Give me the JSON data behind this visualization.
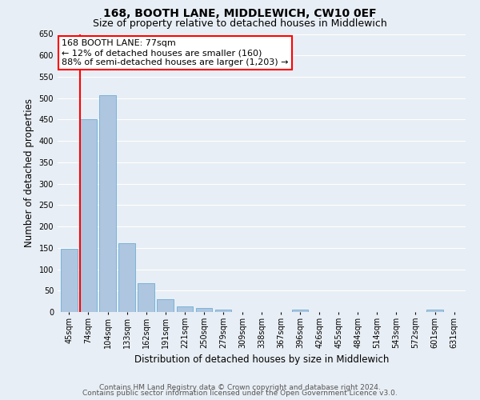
{
  "title": "168, BOOTH LANE, MIDDLEWICH, CW10 0EF",
  "subtitle": "Size of property relative to detached houses in Middlewich",
  "xlabel": "Distribution of detached houses by size in Middlewich",
  "ylabel": "Number of detached properties",
  "categories": [
    "45sqm",
    "74sqm",
    "104sqm",
    "133sqm",
    "162sqm",
    "191sqm",
    "221sqm",
    "250sqm",
    "279sqm",
    "309sqm",
    "338sqm",
    "367sqm",
    "396sqm",
    "426sqm",
    "455sqm",
    "484sqm",
    "514sqm",
    "543sqm",
    "572sqm",
    "601sqm",
    "631sqm"
  ],
  "values": [
    148,
    450,
    507,
    160,
    68,
    30,
    14,
    10,
    5,
    0,
    0,
    0,
    6,
    0,
    0,
    0,
    0,
    0,
    0,
    6,
    0
  ],
  "bar_color": "#aec6e0",
  "bar_edge_color": "#6baed6",
  "vline_color": "red",
  "vline_bin_index": 1,
  "annotation_text": "168 BOOTH LANE: 77sqm\n← 12% of detached houses are smaller (160)\n88% of semi-detached houses are larger (1,203) →",
  "annotation_box_color": "white",
  "annotation_box_edge": "red",
  "ylim": [
    0,
    650
  ],
  "footer1": "Contains HM Land Registry data © Crown copyright and database right 2024.",
  "footer2": "Contains public sector information licensed under the Open Government Licence v3.0.",
  "bg_color": "#e8eef5",
  "plot_bg_color": "#e8eef5",
  "grid_color": "white",
  "title_fontsize": 10,
  "subtitle_fontsize": 9,
  "axis_label_fontsize": 8.5,
  "tick_fontsize": 7,
  "footer_fontsize": 6.5
}
